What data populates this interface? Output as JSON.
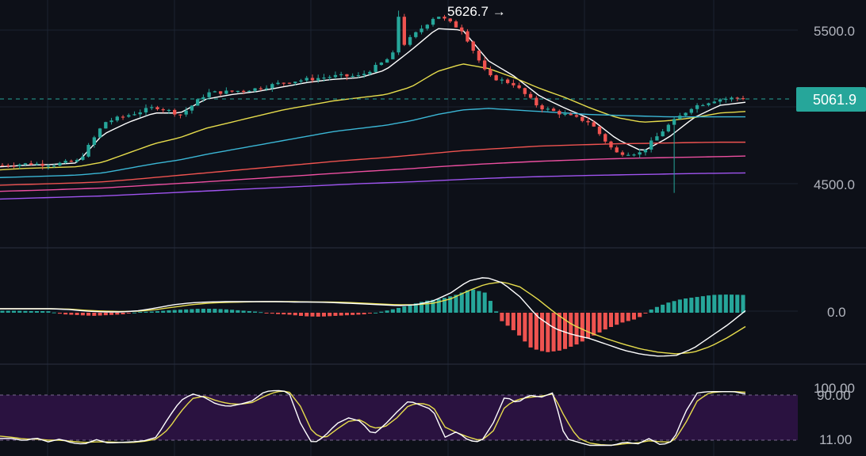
{
  "colors": {
    "background": "#0d1018",
    "grid": "#1c2230",
    "up": "#26a69a",
    "down": "#ef5350",
    "price_line": "#26a69a",
    "price_badge": "#26a69a",
    "rsi_band": "#2a1240"
  },
  "chart_data": [
    {
      "type": "candlestick",
      "panel": "price",
      "price_axis": {
        "tick_labels": [
          "5500.0",
          "4500.0"
        ],
        "ylim": [
          4000,
          5700
        ]
      },
      "current_price": "5061.9",
      "peak_annotation": "5626.7 →",
      "peak_value": 5626.7,
      "trough_value": 4440,
      "candle_count": 130,
      "close_path": [
        4620,
        4630,
        4625,
        4650,
        4900,
        4950,
        5000,
        4950,
        5090,
        5100,
        5120,
        5160,
        5180,
        5200,
        5200,
        5300,
        5450,
        5600,
        5500,
        5200,
        5150,
        5000,
        4950,
        4900,
        4700,
        4700,
        4870,
        5000,
        5050,
        5060
      ],
      "moving_averages": [
        {
          "color": "#ffffff",
          "values": [
            4610,
            4620,
            4625,
            4635,
            4820,
            4900,
            4960,
            4960,
            5050,
            5080,
            5100,
            5130,
            5160,
            5180,
            5190,
            5240,
            5370,
            5510,
            5500,
            5300,
            5200,
            5070,
            4990,
            4920,
            4790,
            4710,
            4800,
            4930,
            5010,
            5030
          ]
        },
        {
          "color": "#e6dc4c",
          "values": [
            4590,
            4600,
            4605,
            4610,
            4640,
            4700,
            4760,
            4800,
            4860,
            4900,
            4940,
            4980,
            5010,
            5040,
            5060,
            5080,
            5130,
            5230,
            5280,
            5250,
            5190,
            5120,
            5060,
            4990,
            4930,
            4900,
            4910,
            4930,
            4960,
            4970
          ]
        },
        {
          "color": "#3bb7d6",
          "values": [
            4540,
            4545,
            4550,
            4556,
            4570,
            4600,
            4630,
            4655,
            4690,
            4720,
            4750,
            4780,
            4810,
            4840,
            4860,
            4880,
            4910,
            4950,
            4980,
            4990,
            4980,
            4970,
            4960,
            4950,
            4945,
            4940,
            4935,
            4935,
            4935,
            4935
          ]
        },
        {
          "color": "#ef5350",
          "values": [
            4490,
            4495,
            4500,
            4505,
            4512,
            4525,
            4540,
            4555,
            4570,
            4585,
            4600,
            4615,
            4630,
            4645,
            4658,
            4670,
            4685,
            4700,
            4715,
            4725,
            4735,
            4745,
            4750,
            4755,
            4760,
            4762,
            4765,
            4768,
            4770,
            4770
          ]
        },
        {
          "color": "#ec4fa0",
          "values": [
            4450,
            4455,
            4460,
            4466,
            4472,
            4482,
            4492,
            4502,
            4512,
            4523,
            4534,
            4545,
            4556,
            4567,
            4578,
            4588,
            4598,
            4610,
            4620,
            4630,
            4638,
            4646,
            4652,
            4658,
            4663,
            4667,
            4670,
            4673,
            4676,
            4680
          ]
        },
        {
          "color": "#a054f0",
          "values": [
            4400,
            4405,
            4410,
            4415,
            4420,
            4428,
            4436,
            4444,
            4452,
            4460,
            4468,
            4476,
            4484,
            4492,
            4500,
            4506,
            4512,
            4520,
            4528,
            4535,
            4541,
            4546,
            4550,
            4554,
            4557,
            4560,
            4563,
            4566,
            4568,
            4570
          ]
        }
      ]
    },
    {
      "type": "bar",
      "panel": "macd",
      "axis_label": "0.0",
      "ylim": [
        -1.2,
        1.2
      ],
      "histogram": [
        0.05,
        0.05,
        0.04,
        0.04,
        -0.04,
        -0.06,
        -0.08,
        -0.06,
        -0.04,
        0.02,
        0.03,
        0.06,
        0.08,
        0.1,
        0.1,
        0.08,
        0.05,
        0.02,
        -0.03,
        -0.05,
        -0.09,
        -0.1,
        -0.08,
        -0.06,
        -0.04,
        0.02,
        0.1,
        0.2,
        0.3,
        0.35,
        0.45,
        0.6,
        0.5,
        -0.2,
        -0.5,
        -0.9,
        -1.0,
        -0.95,
        -0.8,
        -0.6,
        -0.4,
        -0.25,
        -0.15,
        0.1,
        0.25,
        0.35,
        0.4,
        0.45,
        0.46,
        0.45
      ],
      "macd_line": [
        0.1,
        0.1,
        0.1,
        0.1,
        0.08,
        0.04,
        0.02,
        0.02,
        0.05,
        0.12,
        0.2,
        0.25,
        0.27,
        0.28,
        0.28,
        0.28,
        0.28,
        0.27,
        0.27,
        0.26,
        0.24,
        0.22,
        0.2,
        0.18,
        0.2,
        0.3,
        0.5,
        0.8,
        0.9,
        0.75,
        0.4,
        -0.1,
        -0.4,
        -0.55,
        -0.65,
        -0.8,
        -0.95,
        -1.05,
        -1.1,
        -1.08,
        -0.9,
        -0.6,
        -0.3,
        0.05
      ],
      "signal_line": [
        0.1,
        0.1,
        0.1,
        0.1,
        0.09,
        0.06,
        0.04,
        0.03,
        0.04,
        0.08,
        0.14,
        0.2,
        0.24,
        0.26,
        0.27,
        0.28,
        0.28,
        0.28,
        0.27,
        0.27,
        0.26,
        0.24,
        0.22,
        0.2,
        0.2,
        0.24,
        0.35,
        0.55,
        0.72,
        0.78,
        0.65,
        0.35,
        0.0,
        -0.3,
        -0.5,
        -0.66,
        -0.8,
        -0.92,
        -1.0,
        -1.04,
        -1.0,
        -0.85,
        -0.62,
        -0.35
      ]
    },
    {
      "type": "line",
      "panel": "stochastic",
      "axis_labels": [
        "100.00",
        "90.00",
        "11.00"
      ],
      "band": [
        11,
        90
      ],
      "ylim": [
        -5,
        105
      ],
      "k_line": [
        14,
        14,
        10,
        15,
        8,
        13,
        6,
        4,
        12,
        6,
        7,
        8,
        10,
        16,
        50,
        80,
        92,
        86,
        74,
        70,
        74,
        80,
        96,
        98,
        96,
        40,
        4,
        18,
        40,
        50,
        44,
        20,
        38,
        60,
        80,
        72,
        64,
        16,
        26,
        10,
        8,
        40,
        88,
        76,
        90,
        86,
        94,
        14,
        8,
        2,
        2,
        2,
        8,
        4,
        14,
        2,
        10,
        60,
        94,
        96,
        96,
        96,
        92
      ],
      "d_line": [
        18,
        16,
        13,
        13,
        11,
        11,
        9,
        7,
        8,
        8,
        7,
        7,
        9,
        13,
        30,
        60,
        84,
        88,
        80,
        75,
        74,
        77,
        88,
        96,
        97,
        70,
        24,
        14,
        30,
        44,
        47,
        32,
        34,
        50,
        72,
        76,
        70,
        34,
        24,
        16,
        10,
        26,
        70,
        82,
        86,
        88,
        92,
        50,
        16,
        6,
        3,
        2,
        5,
        6,
        10,
        8,
        8,
        40,
        80,
        94,
        96,
        96,
        95
      ]
    }
  ]
}
